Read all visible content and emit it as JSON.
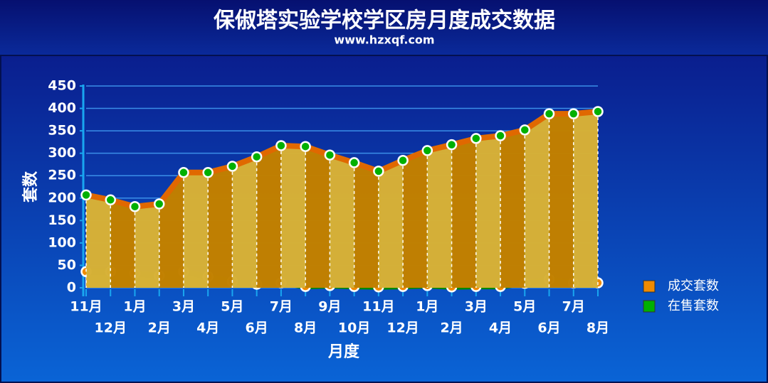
{
  "chart_data": {
    "type": "area",
    "title": "保俶塔实验学校学区房月度成交数据",
    "subtitle": "www.hzxqf.com",
    "x_label": "月度",
    "y_label": "套数",
    "categories": [
      "11月",
      "12月",
      "1月",
      "2月",
      "3月",
      "4月",
      "5月",
      "6月",
      "7月",
      "8月",
      "9月",
      "10月",
      "11月",
      "12月",
      "1月",
      "2月",
      "3月",
      "4月",
      "5月",
      "6月",
      "7月",
      "8月"
    ],
    "series": [
      {
        "name": "成交套数",
        "color": "#f08a00",
        "values": [
          36,
          36,
          32,
          27,
          36,
          25,
          14,
          8,
          11,
          3,
          5,
          3,
          2,
          3,
          5,
          2,
          3,
          3,
          10,
          19,
          11,
          11
        ]
      },
      {
        "name": "在售套数",
        "color": "#00b000",
        "values": [
          207,
          196,
          181,
          187,
          257,
          257,
          271,
          292,
          317,
          315,
          296,
          279,
          260,
          284,
          306,
          319,
          333,
          339,
          352,
          388,
          388,
          393
        ]
      }
    ],
    "ylim": [
      0,
      450
    ],
    "yticks": [
      0,
      50,
      100,
      150,
      200,
      250,
      300,
      350,
      400,
      450
    ],
    "grid": true,
    "legend": "right"
  }
}
